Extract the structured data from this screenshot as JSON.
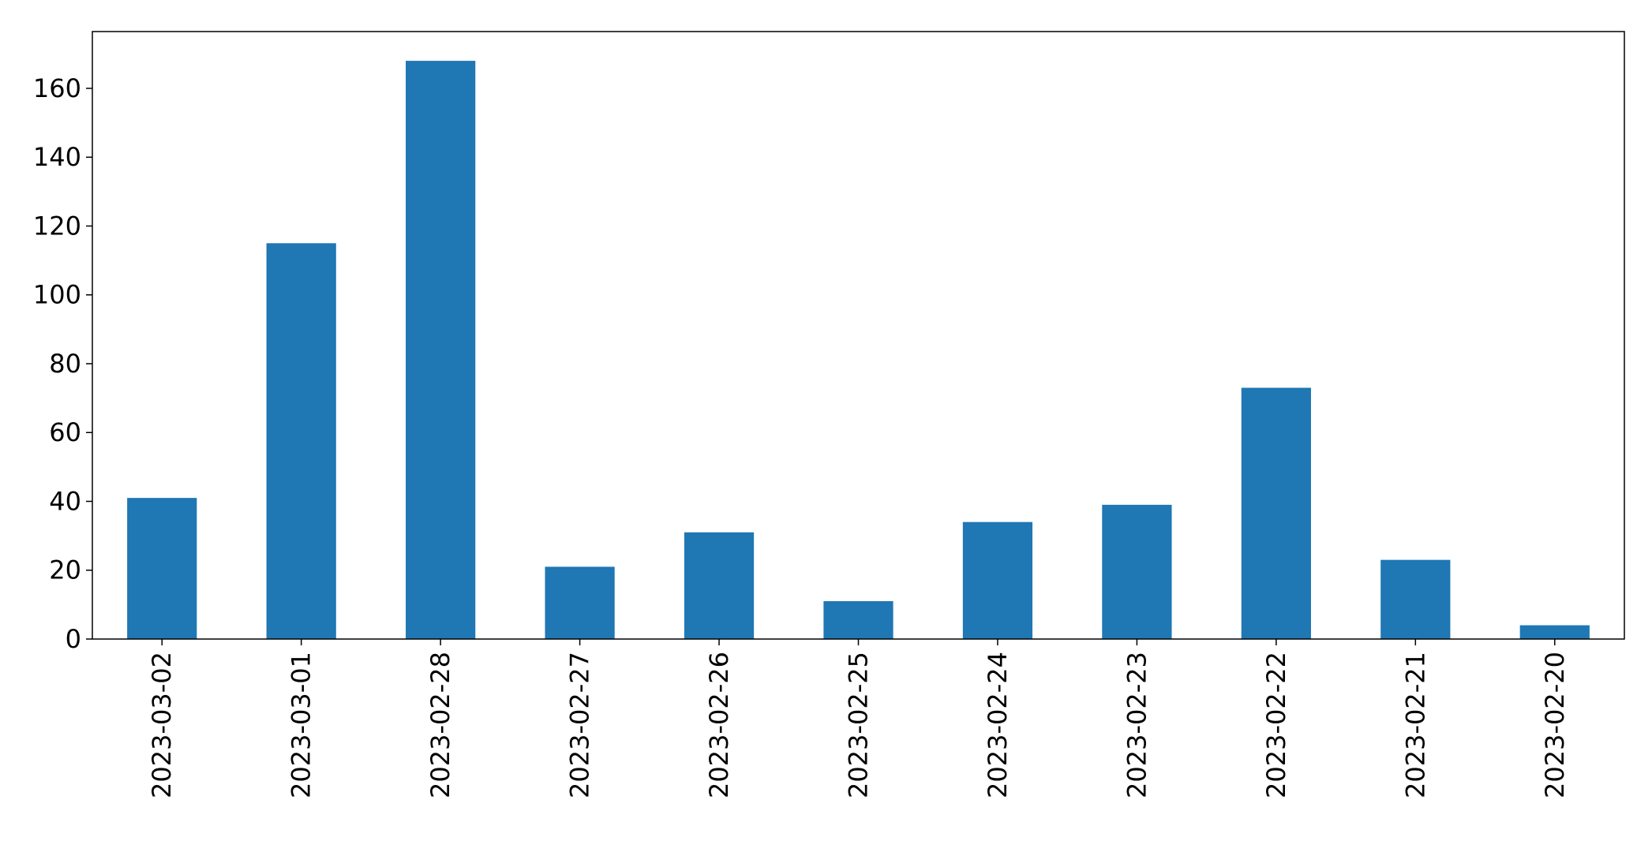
{
  "chart_data": {
    "type": "bar",
    "categories": [
      "2023-03-02",
      "2023-03-01",
      "2023-02-28",
      "2023-02-27",
      "2023-02-26",
      "2023-02-25",
      "2023-02-24",
      "2023-02-23",
      "2023-02-22",
      "2023-02-21",
      "2023-02-20"
    ],
    "values": [
      41,
      115,
      168,
      21,
      31,
      11,
      34,
      39,
      73,
      23,
      4
    ],
    "ylim": [
      0,
      176.5
    ],
    "yticks": [
      0,
      20,
      40,
      60,
      80,
      100,
      120,
      140,
      160
    ],
    "bar_color": "#1f77b4",
    "grid": false,
    "legend": "none",
    "title": "",
    "xlabel": "",
    "ylabel": ""
  }
}
